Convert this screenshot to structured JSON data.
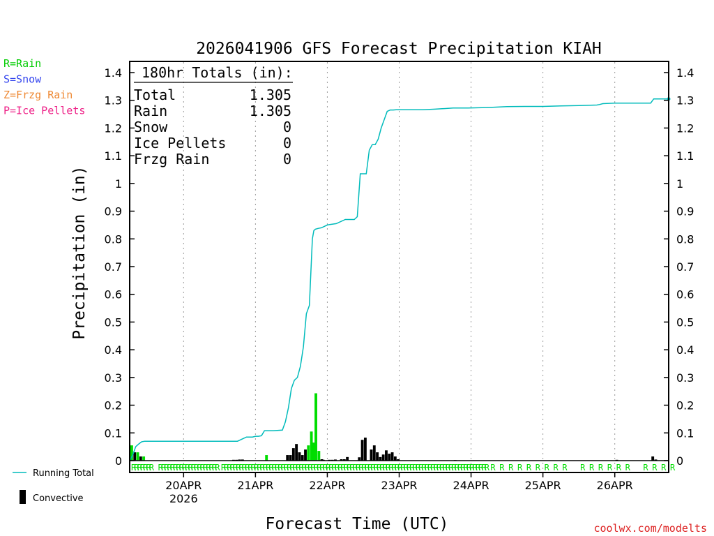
{
  "chart_data": {
    "type": "bar",
    "title": "2026041906 GFS Forecast Precipitation KIAH",
    "xlabel": "Forecast Time (UTC)",
    "ylabel": "Precipitation (in)",
    "ylim": [
      0,
      1.4
    ],
    "yticks": [
      "0",
      "0.1",
      "0.2",
      "0.3",
      "0.4",
      "0.5",
      "0.6",
      "0.7",
      "0.8",
      "0.9",
      "1",
      "1.1",
      "1.2",
      "1.3",
      "1.4"
    ],
    "x_hours_range": [
      0,
      180
    ],
    "xticks": [
      {
        "hour": 18,
        "label": "20APR",
        "sublabel": "2026"
      },
      {
        "hour": 42,
        "label": "21APR",
        "sublabel": ""
      },
      {
        "hour": 66,
        "label": "22APR",
        "sublabel": ""
      },
      {
        "hour": 90,
        "label": "23APR",
        "sublabel": ""
      },
      {
        "hour": 114,
        "label": "24APR",
        "sublabel": ""
      },
      {
        "hour": 138,
        "label": "25APR",
        "sublabel": ""
      },
      {
        "hour": 162,
        "label": "26APR",
        "sublabel": ""
      }
    ],
    "totals_box": {
      "header": "180hr Totals (in):",
      "rows": [
        {
          "label": "Total",
          "value": "1.305"
        },
        {
          "label": "Rain",
          "value": "1.305"
        },
        {
          "label": "Snow",
          "value": "0"
        },
        {
          "label": "Ice Pellets",
          "value": "0"
        },
        {
          "label": "Frzg Rain",
          "value": "0"
        }
      ]
    },
    "ptype_legend": [
      {
        "text": "R=Rain",
        "color": "#00cc00"
      },
      {
        "text": "S=Snow",
        "color": "#3344ee"
      },
      {
        "text": "Z=Frzg Rain",
        "color": "#ee8833"
      },
      {
        "text": "P=Ice Pellets",
        "color": "#ee2288"
      }
    ],
    "legend": {
      "running_total": "Running Total",
      "convective": "Convective"
    },
    "credit": "coolwx.com/modelts",
    "colors": {
      "running_total": "#00bbbb",
      "rain": "#00dd00",
      "convective": "#000000",
      "credit": "#dd2222"
    },
    "running_total": {
      "x": [
        0,
        1,
        2,
        3,
        4,
        5,
        36,
        37,
        38,
        39,
        40,
        41,
        42,
        43,
        44,
        45,
        48,
        51,
        52,
        53,
        54,
        55,
        56,
        57,
        58,
        59,
        60,
        61,
        61.5,
        62,
        63,
        64,
        65,
        66,
        67,
        69,
        72,
        75,
        76,
        77,
        78,
        79,
        80,
        81,
        82,
        83,
        84,
        85,
        86,
        87,
        88,
        89,
        90,
        91,
        98,
        102,
        105,
        108,
        113,
        120,
        126,
        132,
        138,
        144,
        150,
        156,
        157,
        158,
        162,
        168,
        174,
        175,
        177,
        180
      ],
      "y": [
        0.0,
        0.02,
        0.05,
        0.06,
        0.068,
        0.07,
        0.07,
        0.075,
        0.08,
        0.085,
        0.085,
        0.085,
        0.088,
        0.088,
        0.09,
        0.108,
        0.108,
        0.11,
        0.14,
        0.19,
        0.26,
        0.29,
        0.3,
        0.34,
        0.41,
        0.53,
        0.56,
        0.8,
        0.83,
        0.835,
        0.838,
        0.84,
        0.845,
        0.85,
        0.852,
        0.855,
        0.87,
        0.87,
        0.88,
        1.035,
        1.035,
        1.035,
        1.12,
        1.14,
        1.14,
        1.16,
        1.2,
        1.23,
        1.26,
        1.265,
        1.265,
        1.266,
        1.266,
        1.266,
        1.266,
        1.268,
        1.27,
        1.272,
        1.272,
        1.274,
        1.277,
        1.278,
        1.278,
        1.28,
        1.281,
        1.283,
        1.285,
        1.288,
        1.29,
        1.29,
        1.29,
        1.305,
        1.305,
        1.305
      ],
      "end_dot_value": 1.305
    },
    "bars": [
      {
        "hour": 0,
        "value": 0.055,
        "conv": false
      },
      {
        "hour": 1,
        "value": 0.03,
        "conv": true
      },
      {
        "hour": 2,
        "value": 0.03,
        "conv": false
      },
      {
        "hour": 3,
        "value": 0.015,
        "conv": true
      },
      {
        "hour": 4,
        "value": 0.015,
        "conv": false
      },
      {
        "hour": 34,
        "value": 0.003,
        "conv": true
      },
      {
        "hour": 35,
        "value": 0.003,
        "conv": true
      },
      {
        "hour": 36,
        "value": 0.004,
        "conv": true
      },
      {
        "hour": 37,
        "value": 0.004,
        "conv": true
      },
      {
        "hour": 45,
        "value": 0.02,
        "conv": false
      },
      {
        "hour": 52,
        "value": 0.02,
        "conv": true
      },
      {
        "hour": 53,
        "value": 0.02,
        "conv": true
      },
      {
        "hour": 54,
        "value": 0.045,
        "conv": true
      },
      {
        "hour": 55,
        "value": 0.06,
        "conv": true
      },
      {
        "hour": 56,
        "value": 0.03,
        "conv": true
      },
      {
        "hour": 57,
        "value": 0.02,
        "conv": true
      },
      {
        "hour": 58,
        "value": 0.04,
        "conv": true
      },
      {
        "hour": 59,
        "value": 0.055,
        "conv": false
      },
      {
        "hour": 60,
        "value": 0.105,
        "conv": false
      },
      {
        "hour": 60.8,
        "value": 0.065,
        "conv": false
      },
      {
        "hour": 61.5,
        "value": 0.243,
        "conv": false
      },
      {
        "hour": 62.5,
        "value": 0.035,
        "conv": false
      },
      {
        "hour": 63.5,
        "value": 0.005,
        "conv": true
      },
      {
        "hour": 64,
        "value": 0.003,
        "conv": true
      },
      {
        "hour": 66,
        "value": 0.003,
        "conv": true
      },
      {
        "hour": 67,
        "value": 0.003,
        "conv": true
      },
      {
        "hour": 68,
        "value": 0.004,
        "conv": true
      },
      {
        "hour": 70,
        "value": 0.005,
        "conv": true
      },
      {
        "hour": 71,
        "value": 0.005,
        "conv": true
      },
      {
        "hour": 72,
        "value": 0.013,
        "conv": true
      },
      {
        "hour": 76,
        "value": 0.012,
        "conv": true
      },
      {
        "hour": 77,
        "value": 0.075,
        "conv": true
      },
      {
        "hour": 78,
        "value": 0.083,
        "conv": true
      },
      {
        "hour": 80,
        "value": 0.04,
        "conv": true
      },
      {
        "hour": 81,
        "value": 0.055,
        "conv": true
      },
      {
        "hour": 82,
        "value": 0.03,
        "conv": true
      },
      {
        "hour": 83,
        "value": 0.013,
        "conv": true
      },
      {
        "hour": 84,
        "value": 0.022,
        "conv": true
      },
      {
        "hour": 85,
        "value": 0.037,
        "conv": true
      },
      {
        "hour": 86,
        "value": 0.025,
        "conv": true
      },
      {
        "hour": 87,
        "value": 0.03,
        "conv": true
      },
      {
        "hour": 88,
        "value": 0.015,
        "conv": true
      },
      {
        "hour": 89,
        "value": 0.005,
        "conv": true
      },
      {
        "hour": 108,
        "value": 0.002,
        "conv": true
      },
      {
        "hour": 162,
        "value": 0.003,
        "conv": true
      },
      {
        "hour": 174,
        "value": 0.015,
        "conv": true
      },
      {
        "hour": 175,
        "value": 0.004,
        "conv": true
      }
    ],
    "ptype_row": {
      "letter": "R",
      "hours": [
        0,
        1,
        2,
        3,
        4,
        5,
        6,
        9,
        10,
        11,
        12,
        13,
        14,
        15,
        16,
        17,
        18,
        19,
        20,
        21,
        22,
        23,
        24,
        25,
        26,
        27,
        28,
        30,
        31,
        32,
        33,
        34,
        35,
        36,
        37,
        38,
        39,
        40,
        41,
        42,
        43,
        44,
        45,
        46,
        47,
        48,
        49,
        50,
        51,
        52,
        53,
        54,
        55,
        56,
        57,
        58,
        59,
        60,
        61,
        62,
        63,
        64,
        65,
        66,
        67,
        68,
        69,
        70,
        71,
        72,
        73,
        74,
        75,
        76,
        77,
        78,
        79,
        80,
        81,
        82,
        83,
        84,
        85,
        86,
        87,
        88,
        89,
        90,
        91,
        92,
        93,
        94,
        95,
        96,
        97,
        98,
        99,
        100,
        101,
        102,
        103,
        104,
        105,
        106,
        107,
        108,
        109,
        110,
        111,
        112,
        113,
        114,
        115,
        116,
        117,
        118,
        120,
        123,
        126,
        129,
        132,
        135,
        138,
        141,
        144,
        150,
        153,
        156,
        159,
        162,
        165,
        171,
        174,
        177,
        180
      ]
    }
  }
}
